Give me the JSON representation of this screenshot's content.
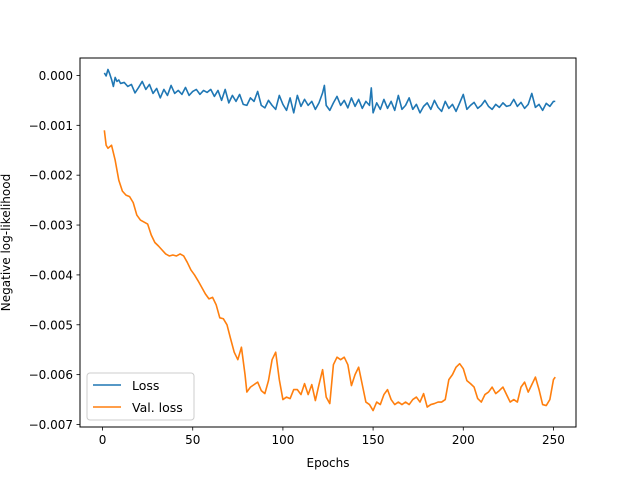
{
  "chart_data": {
    "type": "line",
    "title": "",
    "xlabel": "Epochs",
    "ylabel": "Negative log-likelihood",
    "xlim": [
      -12.5,
      262.5
    ],
    "ylim": [
      -0.00705,
      0.00035
    ],
    "xticks": [
      0,
      50,
      100,
      150,
      200,
      250
    ],
    "xtick_labels": [
      "0",
      "50",
      "100",
      "150",
      "200",
      "250"
    ],
    "yticks": [
      0.0,
      -0.001,
      -0.002,
      -0.003,
      -0.004,
      -0.005,
      -0.006,
      -0.007
    ],
    "ytick_labels": [
      "0.000",
      "−0.001",
      "−0.002",
      "−0.003",
      "−0.004",
      "−0.005",
      "−0.006",
      "−0.007"
    ],
    "grid": false,
    "legend_position": "lower-left",
    "series": [
      {
        "name": "Loss",
        "color": "#1f77b4",
        "points": [
          [
            1,
            5e-05
          ],
          [
            2,
            -1e-05
          ],
          [
            3,
            0.00012
          ],
          [
            4,
            3e-05
          ],
          [
            5,
            -8e-05
          ],
          [
            6,
            -0.00022
          ],
          [
            7,
            -4e-05
          ],
          [
            8,
            -0.00012
          ],
          [
            9,
            -9e-05
          ],
          [
            10,
            -0.00016
          ],
          [
            12,
            -0.00014
          ],
          [
            14,
            -0.00022
          ],
          [
            16,
            -0.00018
          ],
          [
            18,
            -0.00035
          ],
          [
            20,
            -0.00024
          ],
          [
            22,
            -0.00012
          ],
          [
            24,
            -0.00028
          ],
          [
            26,
            -0.00018
          ],
          [
            28,
            -0.00036
          ],
          [
            30,
            -0.00026
          ],
          [
            32,
            -0.00045
          ],
          [
            34,
            -0.00028
          ],
          [
            36,
            -0.0004
          ],
          [
            38,
            -0.0002
          ],
          [
            40,
            -0.00036
          ],
          [
            42,
            -0.0003
          ],
          [
            44,
            -0.00038
          ],
          [
            46,
            -0.00024
          ],
          [
            48,
            -0.0004
          ],
          [
            50,
            -0.00032
          ],
          [
            52,
            -0.00028
          ],
          [
            54,
            -0.00038
          ],
          [
            56,
            -0.0003
          ],
          [
            58,
            -0.00034
          ],
          [
            60,
            -0.00028
          ],
          [
            62,
            -0.00042
          ],
          [
            64,
            -0.0003
          ],
          [
            66,
            -0.0005
          ],
          [
            68,
            -0.00028
          ],
          [
            70,
            -0.00055
          ],
          [
            72,
            -0.0004
          ],
          [
            74,
            -0.00052
          ],
          [
            76,
            -0.00038
          ],
          [
            78,
            -0.00058
          ],
          [
            80,
            -0.0006
          ],
          [
            82,
            -0.00045
          ],
          [
            84,
            -0.00052
          ],
          [
            86,
            -0.00032
          ],
          [
            88,
            -0.0006
          ],
          [
            90,
            -0.00065
          ],
          [
            92,
            -0.0005
          ],
          [
            94,
            -0.0006
          ],
          [
            96,
            -0.00068
          ],
          [
            98,
            -0.0004
          ],
          [
            100,
            -0.00058
          ],
          [
            102,
            -0.0007
          ],
          [
            104,
            -0.00045
          ],
          [
            106,
            -0.00075
          ],
          [
            108,
            -0.0004
          ],
          [
            110,
            -0.00062
          ],
          [
            112,
            -0.00048
          ],
          [
            114,
            -0.0006
          ],
          [
            116,
            -0.00052
          ],
          [
            118,
            -0.00068
          ],
          [
            120,
            -0.00055
          ],
          [
            122,
            -0.00035
          ],
          [
            123,
            -0.0002
          ],
          [
            124,
            -0.0006
          ],
          [
            126,
            -0.0007
          ],
          [
            128,
            -0.00055
          ],
          [
            130,
            -0.00042
          ],
          [
            132,
            -0.0006
          ],
          [
            134,
            -0.0005
          ],
          [
            136,
            -0.00065
          ],
          [
            138,
            -0.00045
          ],
          [
            140,
            -0.00062
          ],
          [
            142,
            -0.00048
          ],
          [
            144,
            -0.00066
          ],
          [
            146,
            -0.00052
          ],
          [
            148,
            -0.0006
          ],
          [
            149,
            -0.00025
          ],
          [
            150,
            -0.00075
          ],
          [
            152,
            -0.00055
          ],
          [
            154,
            -0.00068
          ],
          [
            156,
            -0.00048
          ],
          [
            158,
            -0.00066
          ],
          [
            160,
            -0.00052
          ],
          [
            162,
            -0.0007
          ],
          [
            164,
            -0.0004
          ],
          [
            166,
            -0.00068
          ],
          [
            168,
            -0.0006
          ],
          [
            170,
            -0.00045
          ],
          [
            172,
            -0.00068
          ],
          [
            174,
            -0.00058
          ],
          [
            176,
            -0.00075
          ],
          [
            178,
            -0.00062
          ],
          [
            180,
            -0.00055
          ],
          [
            182,
            -0.00068
          ],
          [
            184,
            -0.0005
          ],
          [
            186,
            -0.00064
          ],
          [
            188,
            -0.00072
          ],
          [
            190,
            -0.00052
          ],
          [
            192,
            -0.00066
          ],
          [
            194,
            -0.00058
          ],
          [
            196,
            -0.00072
          ],
          [
            198,
            -0.00055
          ],
          [
            200,
            -0.00038
          ],
          [
            202,
            -0.00068
          ],
          [
            204,
            -0.0006
          ],
          [
            206,
            -0.00054
          ],
          [
            208,
            -0.00066
          ],
          [
            210,
            -0.0006
          ],
          [
            212,
            -0.0005
          ],
          [
            214,
            -0.00062
          ],
          [
            216,
            -0.00068
          ],
          [
            218,
            -0.00058
          ],
          [
            220,
            -0.00064
          ],
          [
            222,
            -0.00055
          ],
          [
            224,
            -0.00062
          ],
          [
            226,
            -0.0006
          ],
          [
            228,
            -0.00048
          ],
          [
            230,
            -0.00062
          ],
          [
            232,
            -0.00054
          ],
          [
            234,
            -0.00066
          ],
          [
            236,
            -0.00058
          ],
          [
            238,
            -0.00036
          ],
          [
            240,
            -0.00064
          ],
          [
            242,
            -0.00058
          ],
          [
            244,
            -0.0007
          ],
          [
            246,
            -0.00056
          ],
          [
            248,
            -0.00062
          ],
          [
            250,
            -0.00052
          ],
          [
            251,
            -0.00052
          ]
        ]
      },
      {
        "name": "Val. loss",
        "color": "#ff7f0e",
        "points": [
          [
            1,
            -0.0011
          ],
          [
            2,
            -0.0014
          ],
          [
            3,
            -0.00146
          ],
          [
            5,
            -0.0014
          ],
          [
            7,
            -0.0017
          ],
          [
            9,
            -0.0021
          ],
          [
            11,
            -0.00232
          ],
          [
            13,
            -0.0024
          ],
          [
            15,
            -0.00243
          ],
          [
            17,
            -0.00255
          ],
          [
            19,
            -0.0028
          ],
          [
            21,
            -0.0029
          ],
          [
            23,
            -0.00294
          ],
          [
            25,
            -0.00298
          ],
          [
            27,
            -0.0032
          ],
          [
            29,
            -0.00335
          ],
          [
            31,
            -0.00342
          ],
          [
            33,
            -0.0035
          ],
          [
            35,
            -0.00358
          ],
          [
            37,
            -0.00362
          ],
          [
            39,
            -0.0036
          ],
          [
            41,
            -0.00362
          ],
          [
            43,
            -0.00358
          ],
          [
            45,
            -0.00362
          ],
          [
            47,
            -0.00375
          ],
          [
            49,
            -0.0039
          ],
          [
            51,
            -0.004
          ],
          [
            53,
            -0.00412
          ],
          [
            55,
            -0.00425
          ],
          [
            57,
            -0.00438
          ],
          [
            59,
            -0.00448
          ],
          [
            61,
            -0.00445
          ],
          [
            63,
            -0.0046
          ],
          [
            65,
            -0.00486
          ],
          [
            67,
            -0.00488
          ],
          [
            69,
            -0.005
          ],
          [
            71,
            -0.00528
          ],
          [
            73,
            -0.00555
          ],
          [
            75,
            -0.0057
          ],
          [
            77,
            -0.00545
          ],
          [
            79,
            -0.006
          ],
          [
            80,
            -0.00635
          ],
          [
            82,
            -0.00625
          ],
          [
            84,
            -0.0062
          ],
          [
            86,
            -0.00615
          ],
          [
            88,
            -0.00632
          ],
          [
            90,
            -0.00638
          ],
          [
            92,
            -0.00612
          ],
          [
            94,
            -0.0057
          ],
          [
            96,
            -0.00555
          ],
          [
            98,
            -0.0061
          ],
          [
            100,
            -0.0065
          ],
          [
            102,
            -0.00645
          ],
          [
            104,
            -0.00648
          ],
          [
            106,
            -0.0063
          ],
          [
            108,
            -0.0063
          ],
          [
            110,
            -0.0064
          ],
          [
            112,
            -0.00618
          ],
          [
            114,
            -0.0064
          ],
          [
            116,
            -0.0062
          ],
          [
            118,
            -0.00652
          ],
          [
            120,
            -0.0062
          ],
          [
            122,
            -0.0059
          ],
          [
            124,
            -0.00645
          ],
          [
            126,
            -0.00658
          ],
          [
            128,
            -0.0058
          ],
          [
            130,
            -0.00565
          ],
          [
            132,
            -0.0057
          ],
          [
            134,
            -0.00565
          ],
          [
            136,
            -0.0058
          ],
          [
            138,
            -0.00622
          ],
          [
            140,
            -0.006
          ],
          [
            142,
            -0.00585
          ],
          [
            144,
            -0.0062
          ],
          [
            146,
            -0.00655
          ],
          [
            148,
            -0.0066
          ],
          [
            150,
            -0.00672
          ],
          [
            152,
            -0.00655
          ],
          [
            154,
            -0.0066
          ],
          [
            156,
            -0.0064
          ],
          [
            158,
            -0.0063
          ],
          [
            160,
            -0.0065
          ],
          [
            162,
            -0.0066
          ],
          [
            164,
            -0.00655
          ],
          [
            166,
            -0.0066
          ],
          [
            168,
            -0.00655
          ],
          [
            170,
            -0.0066
          ],
          [
            172,
            -0.0065
          ],
          [
            174,
            -0.00645
          ],
          [
            176,
            -0.00655
          ],
          [
            178,
            -0.00638
          ],
          [
            180,
            -0.00665
          ],
          [
            182,
            -0.0066
          ],
          [
            184,
            -0.00658
          ],
          [
            186,
            -0.00655
          ],
          [
            188,
            -0.00655
          ],
          [
            190,
            -0.0065
          ],
          [
            192,
            -0.0061
          ],
          [
            194,
            -0.006
          ],
          [
            196,
            -0.00585
          ],
          [
            198,
            -0.00578
          ],
          [
            200,
            -0.00588
          ],
          [
            202,
            -0.00612
          ],
          [
            204,
            -0.00618
          ],
          [
            206,
            -0.00625
          ],
          [
            208,
            -0.00648
          ],
          [
            210,
            -0.00655
          ],
          [
            212,
            -0.0064
          ],
          [
            214,
            -0.00635
          ],
          [
            216,
            -0.00625
          ],
          [
            218,
            -0.00638
          ],
          [
            220,
            -0.00632
          ],
          [
            222,
            -0.00625
          ],
          [
            224,
            -0.0064
          ],
          [
            226,
            -0.00655
          ],
          [
            228,
            -0.0065
          ],
          [
            230,
            -0.00655
          ],
          [
            232,
            -0.00625
          ],
          [
            234,
            -0.00615
          ],
          [
            236,
            -0.00635
          ],
          [
            238,
            -0.0062
          ],
          [
            240,
            -0.00605
          ],
          [
            242,
            -0.0063
          ],
          [
            244,
            -0.0066
          ],
          [
            246,
            -0.00662
          ],
          [
            248,
            -0.0065
          ],
          [
            250,
            -0.0061
          ],
          [
            251,
            -0.00605
          ]
        ]
      }
    ]
  }
}
